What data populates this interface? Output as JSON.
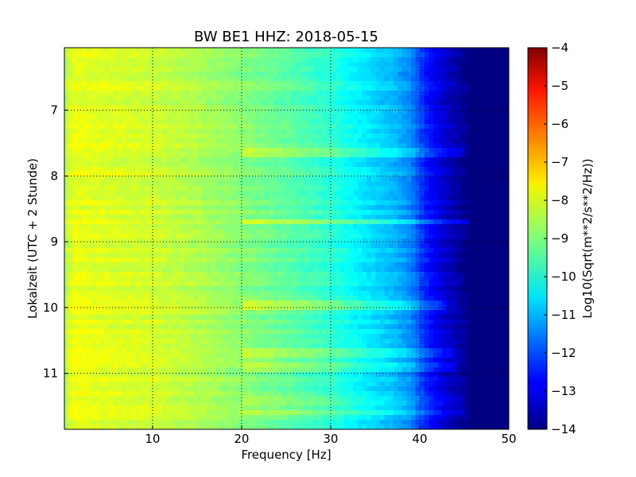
{
  "chart_data": {
    "type": "heatmap",
    "title": "BW BE1 HHZ: 2018-05-15",
    "xlabel": "Frequency [Hz]",
    "ylabel": "Lokalzeit (UTC + 2 Stunde)",
    "xlim": [
      0.1,
      50
    ],
    "ylim": [
      6.05,
      11.85
    ],
    "y_inverted": true,
    "x_ticks": [
      "10",
      "20",
      "30",
      "40",
      "50"
    ],
    "x_tick_values": [
      10,
      20,
      30,
      40,
      50
    ],
    "y_ticks": [
      "7",
      "8",
      "9",
      "10",
      "11"
    ],
    "y_tick_values": [
      7,
      8,
      9,
      10,
      11
    ],
    "grid": true,
    "colormap": "jet",
    "colorbar": {
      "label": "Log10(Sqrt(m**2/s**2/Hz))",
      "range": [
        -14,
        -4
      ],
      "ticks": [
        "−4",
        "−5",
        "−6",
        "−7",
        "−8",
        "−9",
        "−10",
        "−11",
        "−12",
        "−13",
        "−14"
      ],
      "tick_values": [
        -4,
        -5,
        -6,
        -7,
        -8,
        -9,
        -10,
        -11,
        -12,
        -13,
        -14
      ]
    },
    "spectrum_profile": [
      [
        0.1,
        -8.6
      ],
      [
        1,
        -7.9
      ],
      [
        3,
        -8.0
      ],
      [
        6,
        -8.1
      ],
      [
        10,
        -8.2
      ],
      [
        15,
        -8.5
      ],
      [
        20,
        -8.9
      ],
      [
        25,
        -9.3
      ],
      [
        30,
        -9.8
      ],
      [
        33,
        -10.3
      ],
      [
        35,
        -10.6
      ],
      [
        37,
        -10.9
      ],
      [
        39,
        -11.4
      ],
      [
        41,
        -12.6
      ],
      [
        43,
        -13.3
      ],
      [
        45,
        -13.8
      ],
      [
        47,
        -14
      ],
      [
        50,
        -14
      ]
    ],
    "bright_bands": [
      {
        "time": 7.65,
        "to_freq": 45,
        "level": 0.6
      },
      {
        "time": 8.7,
        "to_freq": 46,
        "level": 0.7
      },
      {
        "time": 9.95,
        "to_freq": 43,
        "level": 0.6
      },
      {
        "time": 10.7,
        "to_freq": 44,
        "level": 0.5
      },
      {
        "time": 10.9,
        "to_freq": 44,
        "level": 0.45
      },
      {
        "time": 11.4,
        "to_freq": 45,
        "level": 0.4
      },
      {
        "time": 11.6,
        "to_freq": 45,
        "level": 0.45
      }
    ]
  }
}
